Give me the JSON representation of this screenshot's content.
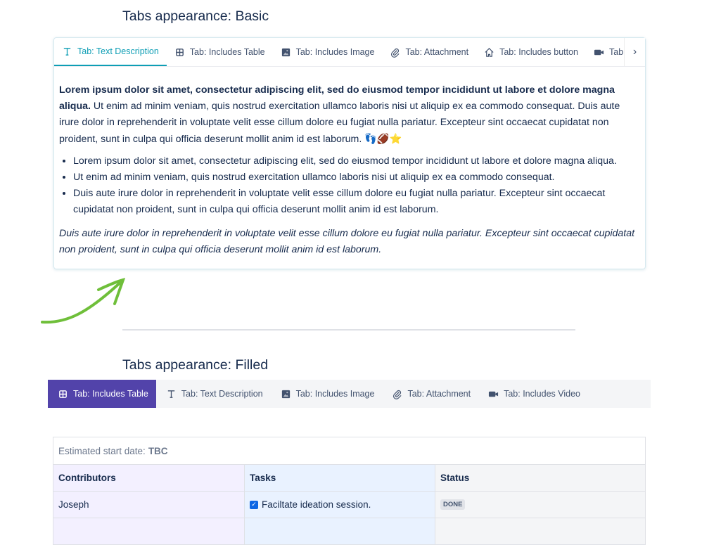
{
  "basic": {
    "heading": "Tabs appearance: Basic",
    "tabs": [
      {
        "label": "Tab: Text Description",
        "icon": "text-icon"
      },
      {
        "label": "Tab: Includes Table",
        "icon": "table-icon"
      },
      {
        "label": "Tab: Includes Image",
        "icon": "image-icon"
      },
      {
        "label": "Tab: Attachment",
        "icon": "attachment-icon"
      },
      {
        "label": "Tab: Includes button",
        "icon": "home-icon"
      },
      {
        "label": "Tab: Includes Video",
        "icon": "video-icon"
      }
    ],
    "bold": "Lorem ipsum dolor sit amet, consectetur adipiscing elit, sed do eiusmod tempor incididunt ut labore et dolore magna aliqua.",
    "para": " Ut enim ad minim veniam, quis nostrud exercitation ullamco laboris nisi ut aliquip ex ea commodo consequat. Duis aute irure dolor in reprehenderit in voluptate velit esse cillum dolore eu fugiat nulla pariatur. Excepteur sint occaecat cupidatat non proident, sunt in culpa qui officia deserunt mollit anim id est laborum. ",
    "emoji": "👣🏈⭐",
    "bullets": [
      "Lorem ipsum dolor sit amet, consectetur adipiscing elit, sed do eiusmod tempor incididunt ut labore et dolore magna aliqua.",
      "Ut enim ad minim veniam, quis nostrud exercitation ullamco laboris nisi ut aliquip ex ea commodo consequat.",
      "Duis aute irure dolor in reprehenderit in voluptate velit esse cillum dolore eu fugiat nulla pariatur. Excepteur sint occaecat cupidatat non proident, sunt in culpa qui officia deserunt mollit anim id est laborum."
    ],
    "italic": "Duis aute irure dolor in reprehenderit in voluptate velit esse cillum dolore eu fugiat nulla pariatur. Excepteur sint occaecat cupidatat non proident, sunt in culpa qui officia deserunt mollit anim id est laborum."
  },
  "filled": {
    "heading": "Tabs appearance: Filled",
    "tabs": [
      {
        "label": "Tab: Includes Table",
        "icon": "table-icon"
      },
      {
        "label": "Tab: Text Description",
        "icon": "text-icon"
      },
      {
        "label": "Tab: Includes Image",
        "icon": "image-icon"
      },
      {
        "label": "Tab: Attachment",
        "icon": "attachment-icon"
      },
      {
        "label": "Tab: Includes Video",
        "icon": "video-icon"
      }
    ]
  },
  "table": {
    "est_label": "Estimated start date:",
    "est_value": "TBC",
    "headers": [
      "Contributors",
      "Tasks",
      "Status"
    ],
    "rows": [
      {
        "contributor": "Joseph",
        "task": "Faciltate ideation session.",
        "checked": true,
        "status": "DONE"
      }
    ]
  },
  "colors": {
    "basic_accent": "#0e9eb5",
    "filled_accent": "#5243aa",
    "arrow": "#6fbf3a"
  }
}
